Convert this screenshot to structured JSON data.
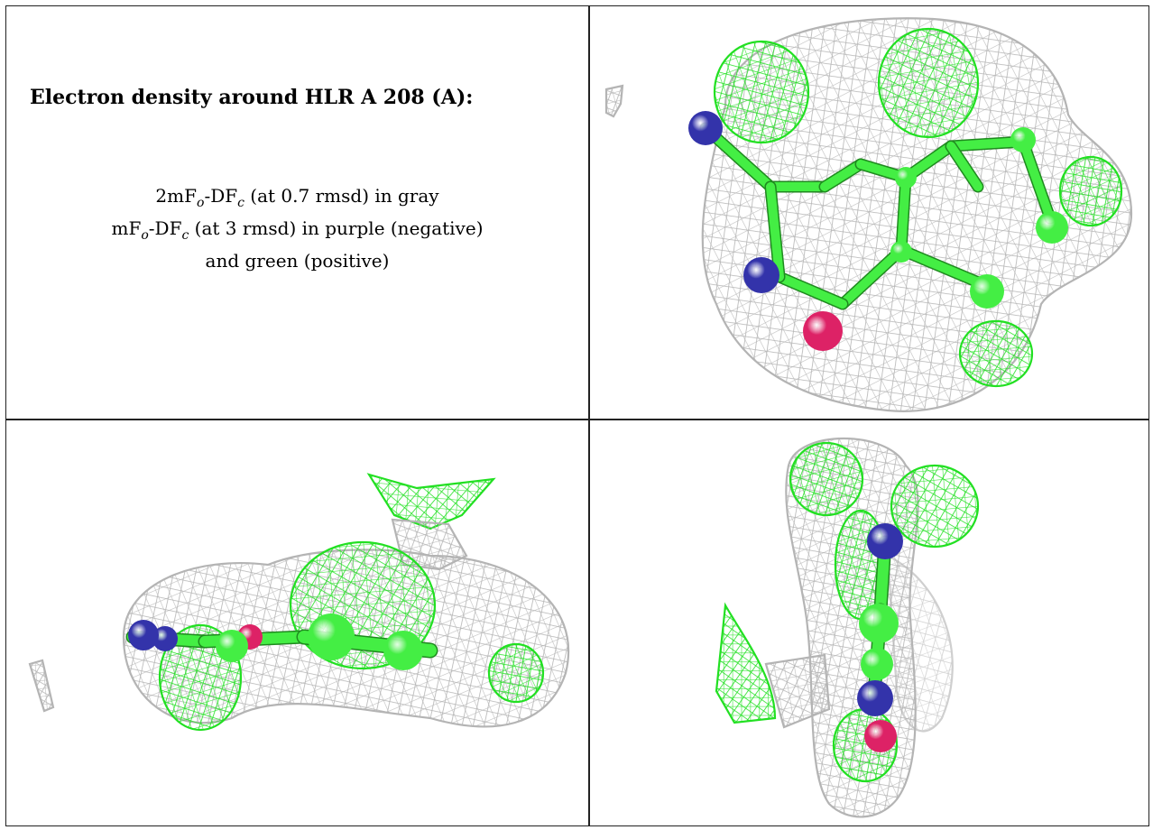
{
  "title": "Electron density around HLR A 208 (A):",
  "legend": {
    "line1": {
      "pre": "2mF",
      "s1": "o",
      "mid": "-DF",
      "s2": "c",
      "post": " (at 0.7 rmsd) in gray"
    },
    "line2": {
      "pre": "mF",
      "s1": "o",
      "mid": "-DF",
      "s2": "c",
      "post": " (at 3 rmsd) in purple (negative)"
    },
    "line3": "and green (positive)"
  },
  "colors": {
    "mesh_gray": "#b4b4b4",
    "mesh_green": "#22e022",
    "atom_carbon": "#44ee44",
    "atom_nitrogen": "#3333aa",
    "atom_oxygen": "#dd2266",
    "border": "#222222"
  },
  "views": [
    "top-right view",
    "bottom-left view",
    "bottom-right view"
  ]
}
